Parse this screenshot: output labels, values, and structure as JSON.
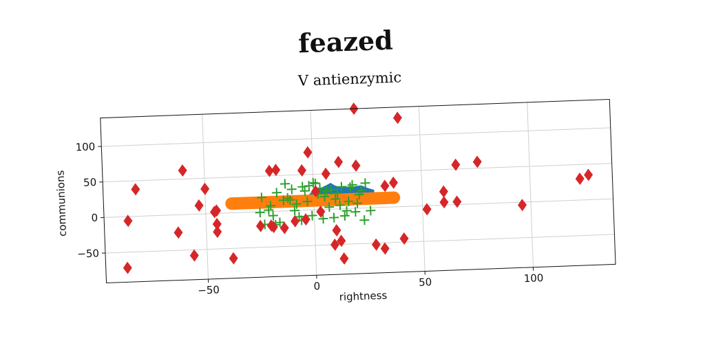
{
  "suptitle": "feazed",
  "chart_data": {
    "type": "scatter",
    "title": "V antienzymic",
    "xlabel": "rightness",
    "ylabel": "communions",
    "xlim": [
      -97,
      138
    ],
    "ylim": [
      -92,
      140
    ],
    "xticks": [
      -50,
      0,
      50,
      100
    ],
    "xtick_labels": [
      "−50",
      "0",
      "50",
      "100"
    ],
    "yticks": [
      -50,
      0,
      50,
      100
    ],
    "ytick_labels": [
      "−50",
      "0",
      "50",
      "100"
    ],
    "grid": true,
    "series": [
      {
        "marker": "area",
        "color": "#1f77b4",
        "x": [
          -2,
          0,
          3,
          6,
          8,
          10,
          13,
          16,
          19,
          22,
          25,
          28
        ],
        "y": [
          22,
          28,
          30,
          34,
          37,
          33,
          30,
          31,
          31,
          32,
          28,
          25
        ]
      },
      {
        "marker": "thick-line",
        "color": "#ff7f0e",
        "x": [
          -38,
          37
        ],
        "y": [
          13,
          13
        ]
      },
      {
        "marker": "plus",
        "color": "#2ca02c",
        "x": [
          -24,
          -20,
          -17,
          -13,
          -11,
          -9,
          -6,
          -4,
          -2,
          1,
          3,
          5,
          7,
          9,
          11,
          13,
          16,
          19,
          22,
          -23,
          -19,
          -14,
          -10,
          -7,
          -3,
          0,
          4,
          8,
          12,
          15,
          18,
          21,
          23,
          -21,
          -16,
          -12,
          -8,
          -5,
          -1,
          2,
          6,
          10,
          14,
          17,
          20,
          24,
          -25,
          -18,
          26
        ],
        "y": [
          20,
          8,
          26,
          38,
          15,
          0,
          -14,
          27,
          34,
          37,
          30,
          18,
          3,
          -12,
          22,
          31,
          10,
          -5,
          25,
          -18,
          -6,
          15,
          30,
          -9,
          12,
          38,
          -13,
          27,
          5,
          -3,
          33,
          19,
          -17,
          2,
          -16,
          18,
          9,
          33,
          -8,
          22,
          26,
          14,
          -10,
          30,
          7,
          35,
          -1,
          -19,
          -4
        ]
      },
      {
        "marker": "diamond",
        "color": "#d62728",
        "x": [
          20,
          40,
          -2,
          -60,
          -82,
          -20,
          12,
          -5,
          20,
          -50,
          -86,
          -53,
          -45,
          -45,
          -45,
          -19,
          -4,
          3,
          33,
          37,
          52,
          60,
          60,
          66,
          66,
          76,
          96,
          123,
          127,
          13,
          10,
          9,
          12,
          -25,
          -20,
          -14,
          -9,
          -63,
          -56,
          -38,
          1,
          28,
          32,
          41,
          6,
          -87,
          -17,
          -46
        ],
        "y": [
          140,
          125,
          81,
          62,
          38,
          57,
          66,
          56,
          60,
          35,
          -6,
          12,
          4,
          -15,
          -26,
          -22,
          -13,
          -3,
          30,
          34,
          -5,
          19,
          4,
          56,
          4,
          59,
          -4,
          30,
          35,
          -70,
          -30,
          -50,
          -45,
          -20,
          -20,
          -24,
          -15,
          -25,
          -58,
          -64,
          26,
          -52,
          -58,
          -45,
          50,
          -72,
          58,
          2
        ]
      }
    ]
  }
}
